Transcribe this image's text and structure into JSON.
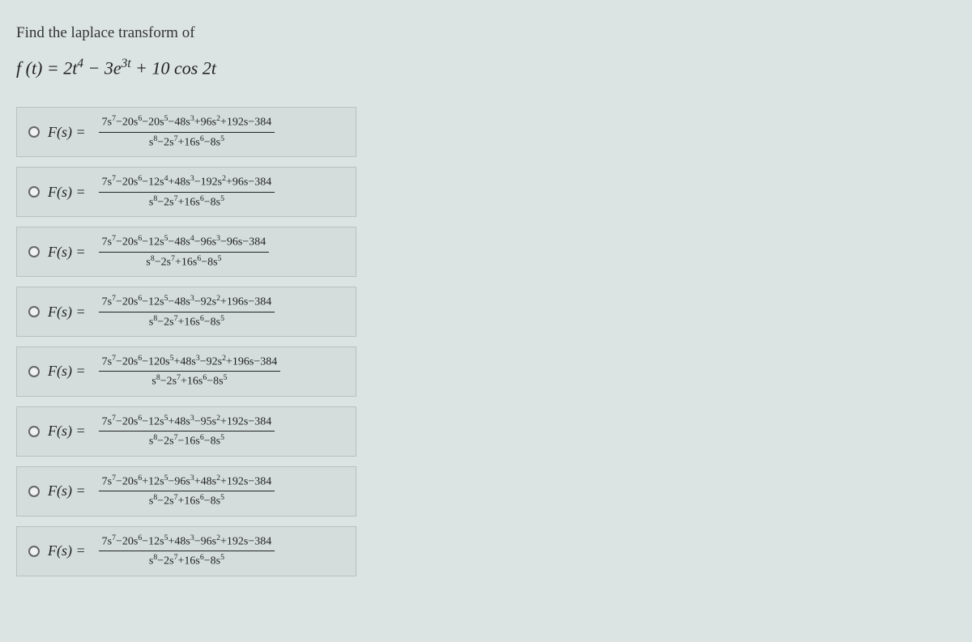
{
  "question": {
    "prompt": "Find the laplace transform of",
    "function_html": "f (t) = 2t<span class='sup'>4</span> − 3e<span class='sup'>3t</span> + 10 cos 2t"
  },
  "options": [
    {
      "numerator": "7s<span class='ssup'>7</span>−20s<span class='ssup'>6</span>−20s<span class='ssup'>5</span>−48s<span class='ssup'>3</span>+96s<span class='ssup'>2</span>+192s−384",
      "denominator": "s<span class='ssup'>8</span>−2s<span class='ssup'>7</span>+16s<span class='ssup'>6</span>−8s<span class='ssup'>5</span>"
    },
    {
      "numerator": "7s<span class='ssup'>7</span>−20s<span class='ssup'>6</span>−12s<span class='ssup'>4</span>+48s<span class='ssup'>3</span>−192s<span class='ssup'>2</span>+96s−384",
      "denominator": "s<span class='ssup'>8</span>−2s<span class='ssup'>7</span>+16s<span class='ssup'>6</span>−8s<span class='ssup'>5</span>"
    },
    {
      "numerator": "7s<span class='ssup'>7</span>−20s<span class='ssup'>6</span>−12s<span class='ssup'>5</span>−48s<span class='ssup'>4</span>−96s<span class='ssup'>3</span>−96s−384",
      "denominator": "s<span class='ssup'>8</span>−2s<span class='ssup'>7</span>+16s<span class='ssup'>6</span>−8s<span class='ssup'>5</span>"
    },
    {
      "numerator": "7s<span class='ssup'>7</span>−20s<span class='ssup'>6</span>−12s<span class='ssup'>5</span>−48s<span class='ssup'>3</span>−92s<span class='ssup'>2</span>+196s−384",
      "denominator": "s<span class='ssup'>8</span>−2s<span class='ssup'>7</span>+16s<span class='ssup'>6</span>−8s<span class='ssup'>5</span>"
    },
    {
      "numerator": "7s<span class='ssup'>7</span>−20s<span class='ssup'>6</span>−120s<span class='ssup'>5</span>+48s<span class='ssup'>3</span>−92s<span class='ssup'>2</span>+196s−384",
      "denominator": "s<span class='ssup'>8</span>−2s<span class='ssup'>7</span>+16s<span class='ssup'>6</span>−8s<span class='ssup'>5</span>"
    },
    {
      "numerator": "7s<span class='ssup'>7</span>−20s<span class='ssup'>6</span>−12s<span class='ssup'>5</span>+48s<span class='ssup'>3</span>−95s<span class='ssup'>2</span>+192s−384",
      "denominator": "s<span class='ssup'>8</span>−2s<span class='ssup'>7</span>−16s<span class='ssup'>6</span>−8s<span class='ssup'>5</span>"
    },
    {
      "numerator": "7s<span class='ssup'>7</span>−20s<span class='ssup'>6</span>+12s<span class='ssup'>5</span>−96s<span class='ssup'>3</span>+48s<span class='ssup'>2</span>+192s−384",
      "denominator": "s<span class='ssup'>8</span>−2s<span class='ssup'>7</span>+16s<span class='ssup'>6</span>−8s<span class='ssup'>5</span>"
    },
    {
      "numerator": "7s<span class='ssup'>7</span>−20s<span class='ssup'>6</span>−12s<span class='ssup'>5</span>+48s<span class='ssup'>3</span>−96s<span class='ssup'>2</span>+192s−384",
      "denominator": "s<span class='ssup'>8</span>−2s<span class='ssup'>7</span>+16s<span class='ssup'>6</span>−8s<span class='ssup'>5</span>"
    }
  ],
  "label_prefix": "F(s) ="
}
